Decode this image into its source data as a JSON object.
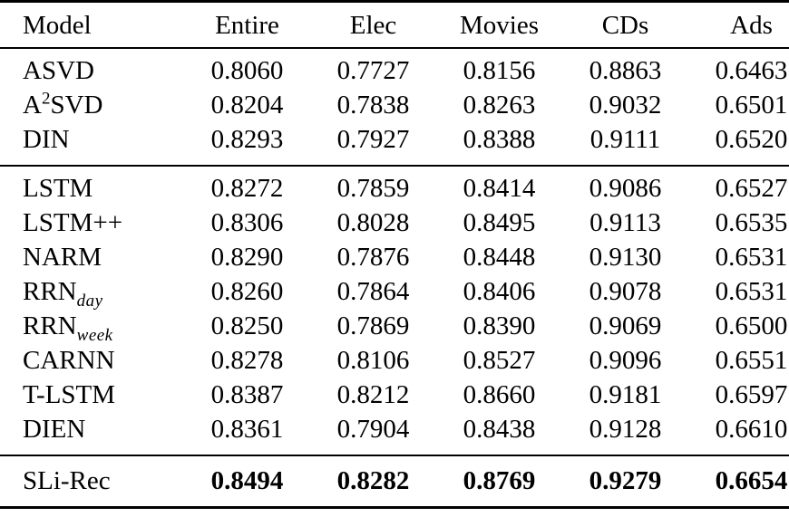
{
  "table": {
    "columns": [
      "Model",
      "Entire",
      "Elec",
      "Movies",
      "CDs",
      "Ads"
    ],
    "groups": [
      {
        "rows": [
          {
            "model": [
              [
                "t",
                "ASVD"
              ]
            ],
            "values": [
              "0.8060",
              "0.7727",
              "0.8156",
              "0.8863",
              "0.6463"
            ],
            "bold": false
          },
          {
            "model": [
              [
                "t",
                "A"
              ],
              [
                "sup",
                "2"
              ],
              [
                "t",
                "SVD"
              ]
            ],
            "values": [
              "0.8204",
              "0.7838",
              "0.8263",
              "0.9032",
              "0.6501"
            ],
            "bold": false
          },
          {
            "model": [
              [
                "t",
                "DIN"
              ]
            ],
            "values": [
              "0.8293",
              "0.7927",
              "0.8388",
              "0.9111",
              "0.6520"
            ],
            "bold": false
          }
        ]
      },
      {
        "rows": [
          {
            "model": [
              [
                "t",
                "LSTM"
              ]
            ],
            "values": [
              "0.8272",
              "0.7859",
              "0.8414",
              "0.9086",
              "0.6527"
            ],
            "bold": false
          },
          {
            "model": [
              [
                "t",
                "LSTM++"
              ]
            ],
            "values": [
              "0.8306",
              "0.8028",
              "0.8495",
              "0.9113",
              "0.6535"
            ],
            "bold": false
          },
          {
            "model": [
              [
                "t",
                "NARM"
              ]
            ],
            "values": [
              "0.8290",
              "0.7876",
              "0.8448",
              "0.9130",
              "0.6531"
            ],
            "bold": false
          },
          {
            "model": [
              [
                "t",
                "RRN"
              ],
              [
                "sub",
                "day"
              ]
            ],
            "values": [
              "0.8260",
              "0.7864",
              "0.8406",
              "0.9078",
              "0.6531"
            ],
            "bold": false
          },
          {
            "model": [
              [
                "t",
                "RRN"
              ],
              [
                "sub",
                "week"
              ]
            ],
            "values": [
              "0.8250",
              "0.7869",
              "0.8390",
              "0.9069",
              "0.6500"
            ],
            "bold": false
          },
          {
            "model": [
              [
                "t",
                "CARNN"
              ]
            ],
            "values": [
              "0.8278",
              "0.8106",
              "0.8527",
              "0.9096",
              "0.6551"
            ],
            "bold": false
          },
          {
            "model": [
              [
                "t",
                "T-LSTM"
              ]
            ],
            "values": [
              "0.8387",
              "0.8212",
              "0.8660",
              "0.9181",
              "0.6597"
            ],
            "bold": false
          },
          {
            "model": [
              [
                "t",
                "DIEN"
              ]
            ],
            "values": [
              "0.8361",
              "0.7904",
              "0.8438",
              "0.9128",
              "0.6610"
            ],
            "bold": false
          }
        ]
      },
      {
        "rows": [
          {
            "model": [
              [
                "t",
                "SLi-Rec"
              ]
            ],
            "values": [
              "0.8494",
              "0.8282",
              "0.8769",
              "0.9279",
              "0.6654"
            ],
            "bold": true
          }
        ]
      }
    ]
  }
}
